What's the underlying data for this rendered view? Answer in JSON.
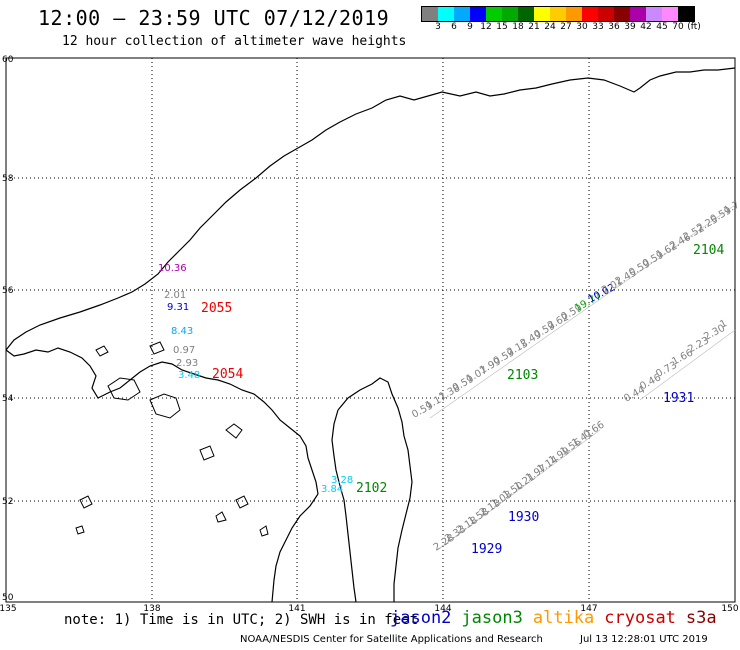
{
  "header": {
    "title": "12:00 — 23:59 UTC 07/12/2019",
    "subtitle": "12 hour collection of altimeter wave heights"
  },
  "colorbar": {
    "swatches": [
      {
        "color": "#808080",
        "label": "3"
      },
      {
        "color": "#00ffff",
        "label": "6"
      },
      {
        "color": "#00aaff",
        "label": "9"
      },
      {
        "color": "#0000ff",
        "label": "12"
      },
      {
        "color": "#00cc00",
        "label": "15"
      },
      {
        "color": "#00aa00",
        "label": "18"
      },
      {
        "color": "#006600",
        "label": "21"
      },
      {
        "color": "#ffff00",
        "label": "24"
      },
      {
        "color": "#ffcc00",
        "label": "27"
      },
      {
        "color": "#ff9900",
        "label": "30"
      },
      {
        "color": "#ff0000",
        "label": "33"
      },
      {
        "color": "#cc0000",
        "label": "36"
      },
      {
        "color": "#880000",
        "label": "39"
      },
      {
        "color": "#aa00aa",
        "label": "42"
      },
      {
        "color": "#cc88ff",
        "label": "45"
      },
      {
        "color": "#ff88ff",
        "label": "70"
      },
      {
        "color": "#000000",
        "label": "(ft)"
      }
    ]
  },
  "axes": {
    "lat_labels": [
      "60",
      "58",
      "56",
      "54",
      "52",
      "50"
    ],
    "lon_labels": [
      "135",
      "138",
      "141",
      "144",
      "147",
      "150"
    ]
  },
  "map_labels": {
    "jason2_pass": [
      {
        "text": "10.36",
        "color": "#aa00aa"
      },
      {
        "text": "2.01",
        "color": "#808080"
      },
      {
        "text": "9.31",
        "color": "#0000cc"
      },
      {
        "text": "8.43",
        "color": "#00aaff"
      },
      {
        "text": "0.97",
        "color": "#808080"
      },
      {
        "text": "2.93",
        "color": "#808080"
      },
      {
        "text": "3.48",
        "color": "#00ccff"
      }
    ],
    "pass_ids": [
      {
        "text": "2055",
        "color": "#ee0000"
      },
      {
        "text": "2054",
        "color": "#ee0000"
      },
      {
        "text": "2102",
        "color": "#008800"
      },
      {
        "text": "2103",
        "color": "#008800"
      },
      {
        "text": "2104",
        "color": "#008800"
      },
      {
        "text": "1930",
        "color": "#0000cc"
      },
      {
        "text": "1929",
        "color": "#0000cc"
      },
      {
        "text": "1931",
        "color": "#0000cc"
      }
    ],
    "track2103": [
      "0.59",
      "1.17",
      "1.38",
      "0.59",
      "1.07",
      "1.99",
      "0.59",
      "2.15",
      "2.49",
      "0.59",
      "2.62",
      "0.59",
      "19.77",
      "10.02",
      "2.01",
      "2.45",
      "0.59",
      "0.59",
      "1.62",
      "2.46",
      "2.52",
      "2.25",
      "0.59",
      "1.7"
    ],
    "track2103_colors": {
      "19.77": "#00aa00",
      "10.02": "#0000cc"
    },
    "track1930": [
      "2.28",
      "2.33",
      "2.18",
      "1.58",
      "2.13",
      "1.03",
      "1.50",
      "1.21",
      "1.97",
      "1.14",
      "1.99",
      "1.56",
      "1.41",
      "0.66"
    ],
    "track1931": [
      "0.44",
      "0.46",
      "0.73",
      "1.66",
      "2.23",
      "2.30",
      "1"
    ],
    "track2102": [
      {
        "text": "3.28",
        "color": "#00ccff"
      },
      {
        "text": "3.84",
        "color": "#00ccff"
      }
    ]
  },
  "footer": {
    "note": "note: 1) Time is in UTC; 2) SWH is in feet",
    "satellites": [
      {
        "name": "jason2",
        "color": "#0000cc"
      },
      {
        "name": "jason3",
        "color": "#008800"
      },
      {
        "name": "altika",
        "color": "#ff9900"
      },
      {
        "name": "cryosat",
        "color": "#cc0000"
      },
      {
        "name": "s3a",
        "color": "#880000"
      }
    ],
    "credit": "NOAA/NESDIS Center for Satellite Applications and Research",
    "timestamp": "Jul 13 12:28:01 UTC 2019"
  }
}
